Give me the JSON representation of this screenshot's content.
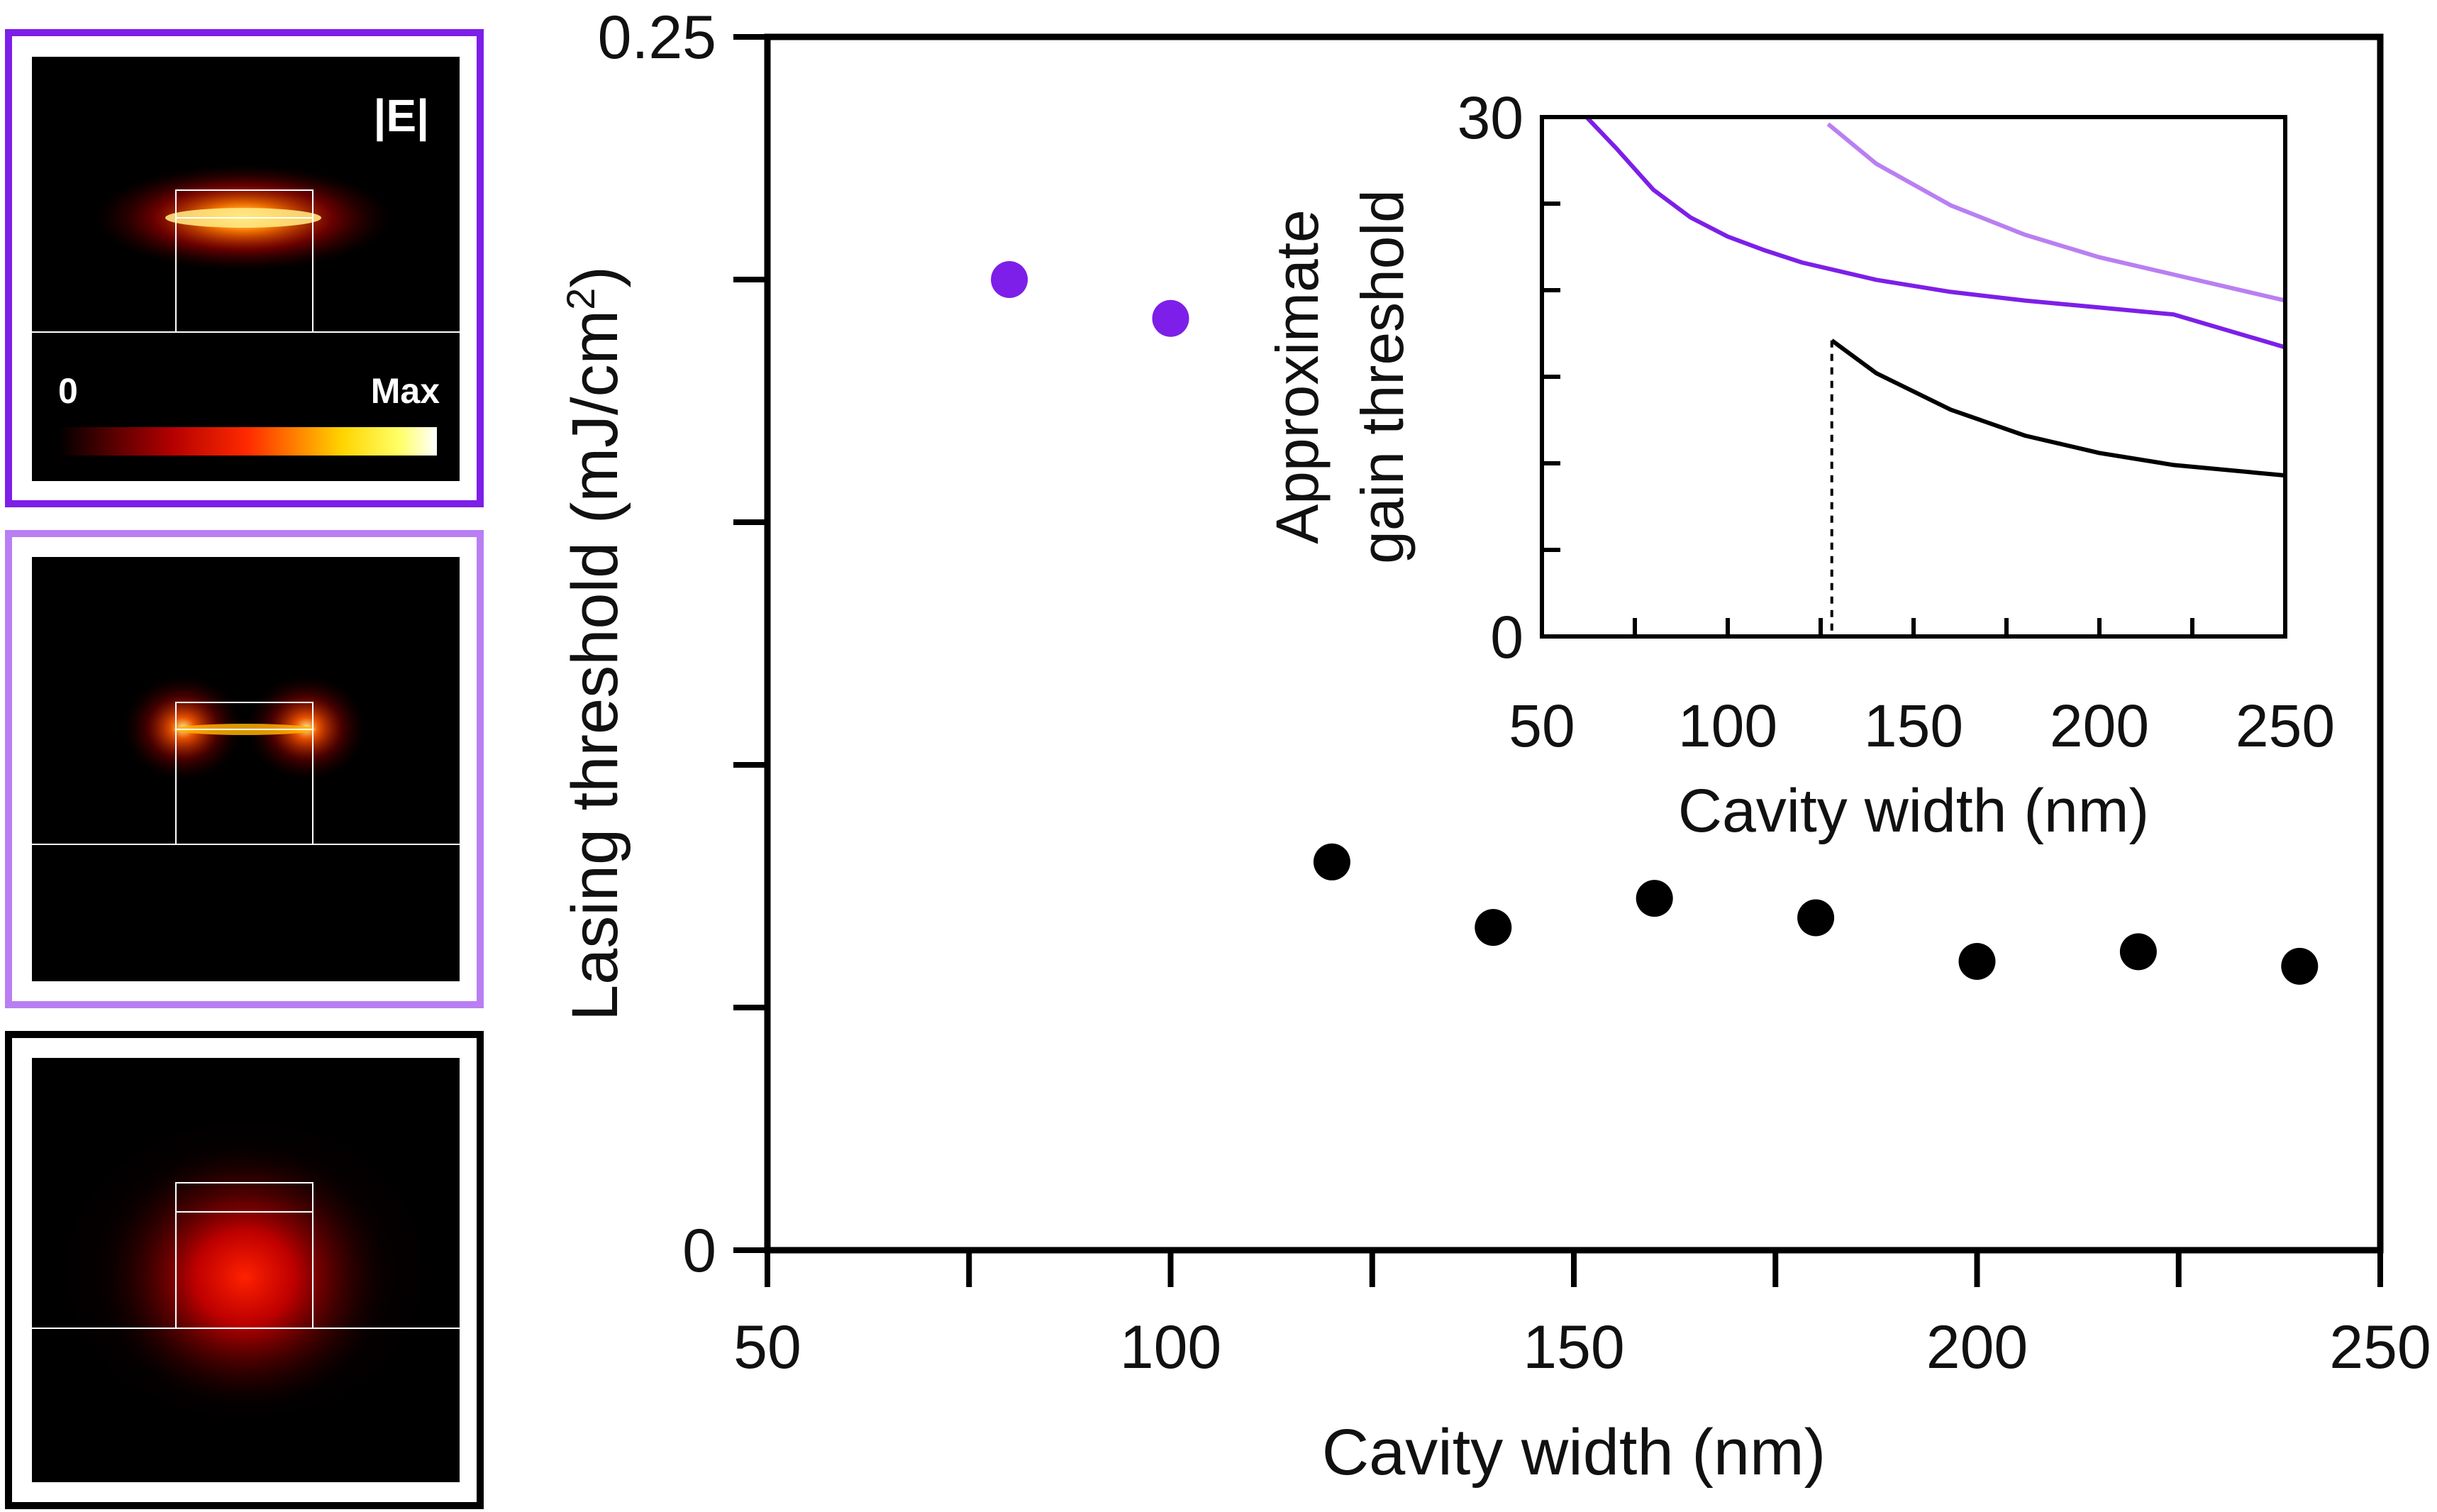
{
  "colors": {
    "mode1": "#7d1fe8",
    "mode2": "#b97ff2",
    "mode3": "#000000",
    "axis": "#000000"
  },
  "field_maps": {
    "label": "|E|",
    "colorbar_min": "0",
    "colorbar_max": "Max",
    "panels": [
      "mode1",
      "mode2",
      "mode3"
    ]
  },
  "chart_data": [
    {
      "type": "scatter",
      "title": "",
      "xlabel": "Cavity width (nm)",
      "ylabel": "Lasing threshold (mJ/cm",
      "ylabel_sup": "2",
      "ylabel_tail": ")",
      "xlim": [
        50,
        250
      ],
      "ylim": [
        0,
        0.25
      ],
      "xticks": [
        50,
        75,
        100,
        125,
        150,
        175,
        200,
        225,
        250
      ],
      "xtick_labels": [
        "50",
        "100",
        "150",
        "200",
        "250"
      ],
      "xtick_label_values": [
        50,
        100,
        150,
        200,
        250
      ],
      "yticks": [
        0,
        0.05,
        0.1,
        0.15,
        0.2,
        0.25
      ],
      "ytick_labels": [
        "0",
        "0.25"
      ],
      "ytick_label_values": [
        0,
        0.25
      ],
      "grid": false,
      "series": [
        {
          "color_key": "mode1",
          "x": [
            80,
            100
          ],
          "y": [
            0.2,
            0.192
          ]
        },
        {
          "color_key": "mode3",
          "x": [
            120,
            140,
            160,
            180,
            200,
            220,
            240
          ],
          "y": [
            0.08,
            0.0665,
            0.0725,
            0.0685,
            0.0595,
            0.0615,
            0.0585
          ]
        }
      ]
    },
    {
      "type": "line",
      "title": "",
      "xlabel": "Cavity width (nm)",
      "ylabel": "Approximate",
      "ylabel2": "gain threshold",
      "xlim": [
        50,
        250
      ],
      "ylim": [
        0,
        30
      ],
      "xticks": [
        50,
        75,
        100,
        125,
        150,
        175,
        200,
        225,
        250
      ],
      "xtick_labels": [
        "50",
        "100",
        "150",
        "200",
        "250"
      ],
      "xtick_label_values": [
        50,
        100,
        150,
        200,
        250
      ],
      "yticks": [
        0,
        5,
        10,
        15,
        20,
        25,
        30
      ],
      "ytick_labels": [
        "0",
        "30"
      ],
      "ytick_label_values": [
        0,
        30
      ],
      "grid": false,
      "cutoff_x": 128,
      "series": [
        {
          "color_key": "mode1",
          "x": [
            62,
            70,
            80,
            90,
            100,
            110,
            120,
            130,
            140,
            160,
            180,
            200,
            220,
            250
          ],
          "y": [
            30,
            28.2,
            25.8,
            24.2,
            23.1,
            22.3,
            21.6,
            21.1,
            20.6,
            19.9,
            19.4,
            19.0,
            18.6,
            16.7
          ]
        },
        {
          "color_key": "mode2",
          "x": [
            127,
            140,
            160,
            180,
            200,
            220,
            250
          ],
          "y": [
            29.6,
            27.3,
            24.9,
            23.2,
            21.9,
            20.9,
            19.4
          ]
        },
        {
          "color_key": "mode3",
          "x": [
            128,
            140,
            160,
            180,
            200,
            220,
            250
          ],
          "y": [
            17.1,
            15.2,
            13.1,
            11.6,
            10.6,
            9.9,
            9.3
          ]
        }
      ]
    }
  ]
}
